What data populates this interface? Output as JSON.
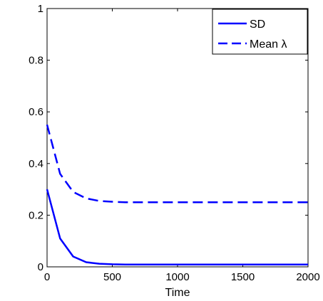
{
  "chart_data": {
    "type": "line",
    "title": "",
    "xlabel": "Time",
    "ylabel": "",
    "xlim": [
      0,
      2000
    ],
    "ylim": [
      0,
      1
    ],
    "xticks": [
      0,
      500,
      1000,
      1500,
      2000
    ],
    "yticks": [
      0,
      0.2,
      0.4,
      0.6,
      0.8,
      1
    ],
    "xtick_labels": [
      "0",
      "500",
      "1000",
      "1500",
      "2000"
    ],
    "ytick_labels": [
      "0",
      "0.2",
      "0.4",
      "0.6",
      "0.8",
      "1"
    ],
    "grid": false,
    "legend_position": "top-right",
    "series": [
      {
        "name": "SD",
        "style": "solid",
        "color": "#0000ff",
        "x": [
          0,
          100,
          200,
          300,
          400,
          500,
          600,
          800,
          1000,
          1200,
          1400,
          1600,
          1800,
          2000
        ],
        "y": [
          0.3,
          0.11,
          0.04,
          0.018,
          0.012,
          0.01,
          0.009,
          0.009,
          0.009,
          0.009,
          0.009,
          0.009,
          0.009,
          0.009
        ]
      },
      {
        "name": "Mean λ",
        "style": "dashed",
        "color": "#0000ff",
        "x": [
          0,
          100,
          200,
          300,
          400,
          500,
          600,
          800,
          1000,
          1200,
          1400,
          1600,
          1800,
          2000
        ],
        "y": [
          0.55,
          0.36,
          0.29,
          0.265,
          0.255,
          0.252,
          0.25,
          0.25,
          0.25,
          0.25,
          0.25,
          0.25,
          0.25,
          0.25
        ]
      }
    ]
  }
}
